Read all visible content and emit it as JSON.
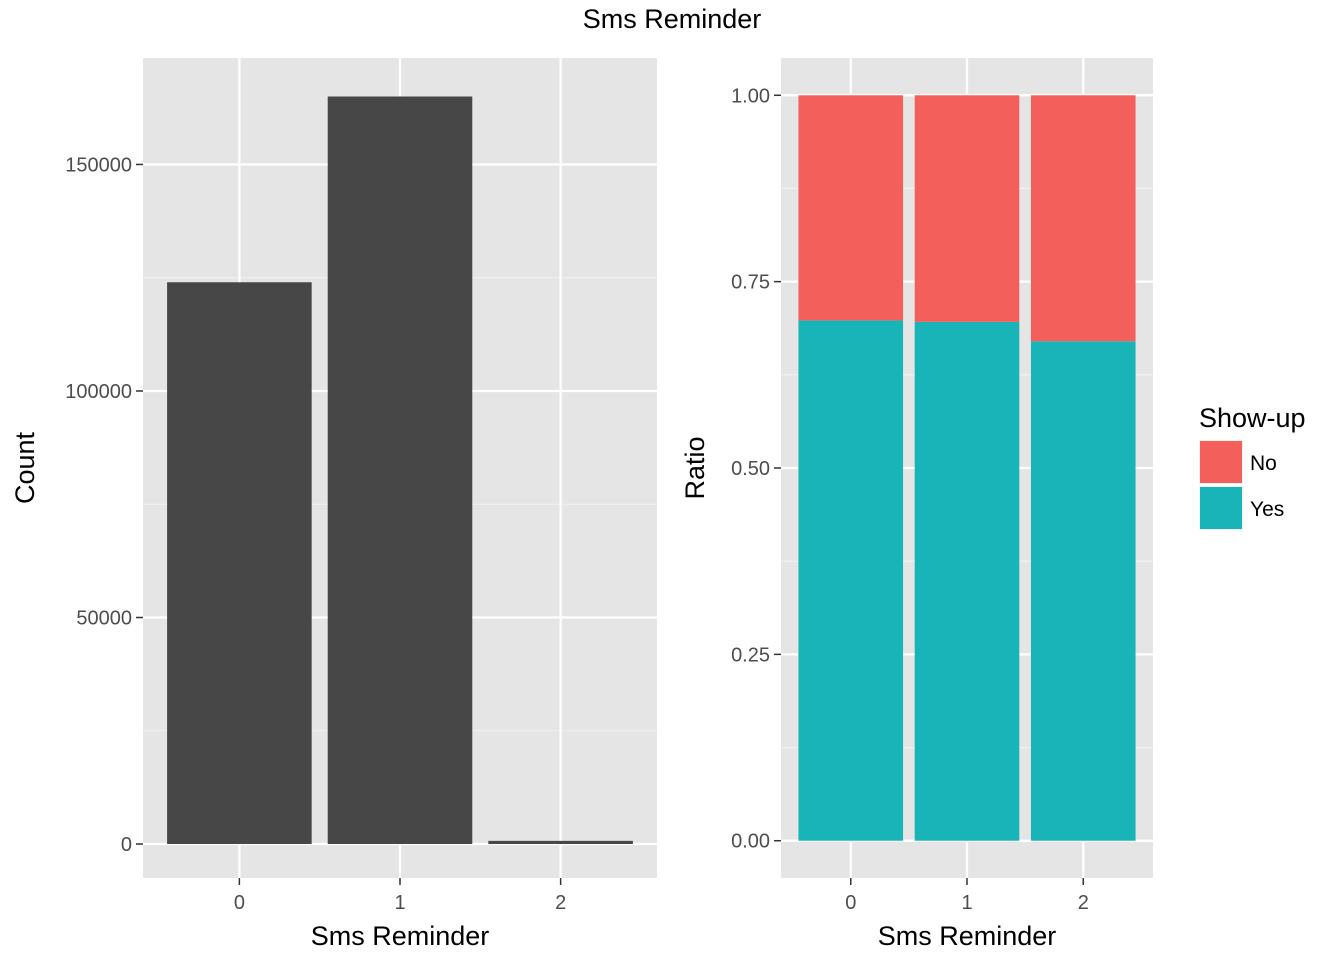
{
  "title": "Sms Reminder",
  "chart_data": [
    {
      "type": "bar",
      "xlabel": "Sms Reminder",
      "ylabel": "Count",
      "categories": [
        "0",
        "1",
        "2"
      ],
      "values": [
        124000,
        165000,
        700
      ],
      "ylim": [
        -7500,
        173500
      ],
      "yticks": [
        0,
        50000,
        100000,
        150000
      ],
      "ytick_labels": [
        "0",
        "50000",
        "100000",
        "150000"
      ],
      "grid": true,
      "bar_color": "#474747",
      "panel_background": "#e5e5e5"
    },
    {
      "type": "bar",
      "stacked": true,
      "xlabel": "Sms Reminder",
      "ylabel": "Ratio",
      "categories": [
        "0",
        "1",
        "2"
      ],
      "series": [
        {
          "name": "Yes",
          "values": [
            0.698,
            0.696,
            0.67
          ],
          "color": "#19b4b8"
        },
        {
          "name": "No",
          "values": [
            0.302,
            0.304,
            0.33
          ],
          "color": "#f3605c"
        }
      ],
      "ylim": [
        -0.05,
        1.05
      ],
      "yticks": [
        0,
        0.25,
        0.5,
        0.75,
        1.0
      ],
      "ytick_labels": [
        "0.00",
        "0.25",
        "0.50",
        "0.75",
        "1.00"
      ],
      "grid": true,
      "legend": {
        "title": "Show-up",
        "position": "right",
        "items": [
          {
            "label": "No",
            "color": "#f3605c"
          },
          {
            "label": "Yes",
            "color": "#19b4b8"
          }
        ]
      },
      "panel_background": "#e5e5e5"
    }
  ]
}
